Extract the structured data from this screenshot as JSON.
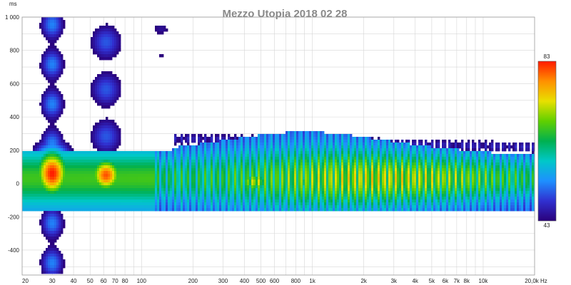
{
  "chart_data": {
    "type": "heatmap",
    "title": "Mezzo Utopia 2018 02 28",
    "xlabel": "Hz",
    "ylabel": "ms",
    "x_scale": "log",
    "xlim": [
      20,
      20000
    ],
    "ylim": [
      -550,
      1000
    ],
    "x_tick_labels": [
      {
        "value": 20,
        "label": "20"
      },
      {
        "value": 30,
        "label": "30"
      },
      {
        "value": 40,
        "label": "40"
      },
      {
        "value": 50,
        "label": "50"
      },
      {
        "value": 60,
        "label": "60"
      },
      {
        "value": 70,
        "label": "70"
      },
      {
        "value": 80,
        "label": "80"
      },
      {
        "value": 100,
        "label": "100"
      },
      {
        "value": 200,
        "label": "200"
      },
      {
        "value": 300,
        "label": "300"
      },
      {
        "value": 400,
        "label": "400"
      },
      {
        "value": 500,
        "label": "500"
      },
      {
        "value": 600,
        "label": "600"
      },
      {
        "value": 800,
        "label": "800"
      },
      {
        "value": 1000,
        "label": "1k"
      },
      {
        "value": 2000,
        "label": "2k"
      },
      {
        "value": 3000,
        "label": "3k"
      },
      {
        "value": 4000,
        "label": "4k"
      },
      {
        "value": 5000,
        "label": "5k"
      },
      {
        "value": 6000,
        "label": "6k"
      },
      {
        "value": 7000,
        "label": "7k"
      },
      {
        "value": 8000,
        "label": "8k"
      },
      {
        "value": 10000,
        "label": "10k"
      },
      {
        "value": 20000,
        "label": "20,0k Hz"
      }
    ],
    "y_tick_labels": [
      {
        "value": 1000,
        "label": "1 000"
      },
      {
        "value": 800,
        "label": "800"
      },
      {
        "value": 600,
        "label": "600"
      },
      {
        "value": 400,
        "label": "400"
      },
      {
        "value": 200,
        "label": "200"
      },
      {
        "value": 0,
        "label": "0"
      },
      {
        "value": -200,
        "label": "-200"
      },
      {
        "value": -400,
        "label": "-400"
      }
    ],
    "color_scale": {
      "min": 43,
      "max": 83,
      "min_label": "43",
      "max_label": "83",
      "colors": [
        "#2a007a",
        "#3030d0",
        "#1e90ff",
        "#00c8c8",
        "#00b050",
        "#60d000",
        "#e8e000",
        "#ff9000",
        "#ff1a00"
      ]
    },
    "grid": true,
    "regions": [
      {
        "label": "band",
        "f_start": 20,
        "f_end": 20000,
        "top_ms": 190,
        "bottom_ms": -160,
        "level": 0.35
      },
      {
        "label": "peak-30Hz",
        "freq": 30,
        "time_ms": 60,
        "level": 1.0
      },
      {
        "label": "peak-62Hz",
        "freq": 62,
        "time_ms": 50,
        "level": 0.95
      },
      {
        "label": "peak-460Hz",
        "freq": 460,
        "time_ms": 10,
        "level": 0.82
      },
      {
        "label": "peak-900Hz",
        "freq": 900,
        "time_ms": 10,
        "level": 0.76
      },
      {
        "label": "mid-band",
        "freq": 2500,
        "time_ms": 20,
        "level": 0.66
      },
      {
        "label": "high-band",
        "freq": 8000,
        "time_ms": 10,
        "level": 0.58
      },
      {
        "label": "low-streak-30Hz",
        "freq": 30,
        "t_start_ms": -540,
        "t_end_ms": 1000,
        "level": 0.25
      },
      {
        "label": "low-streak-60Hz",
        "freq": 62,
        "t_start_ms": 200,
        "t_end_ms": 1000,
        "level": 0.22
      },
      {
        "label": "ridge-200ms",
        "f_start": 150,
        "f_end": 20000,
        "time_ms": 250,
        "level": 0.22
      }
    ]
  }
}
